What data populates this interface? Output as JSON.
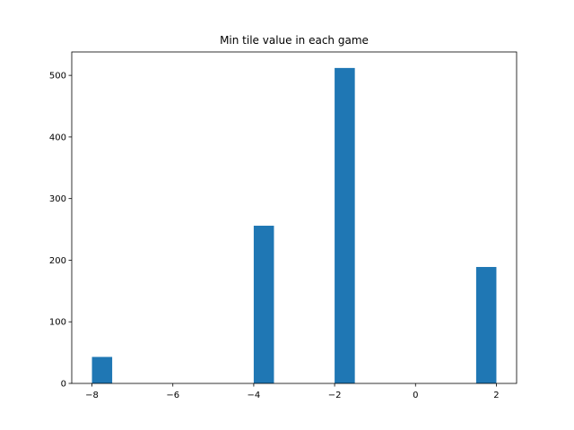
{
  "chart_data": {
    "type": "bar",
    "title": "Min tile value in each game",
    "xlabel": "",
    "ylabel": "",
    "xlim": [
      -8.5,
      2.5
    ],
    "ylim": [
      0,
      538
    ],
    "grid": false,
    "bar_color": "#1f77b4",
    "bin_width": 0.5,
    "bars": [
      {
        "x_left": -8.0,
        "x_right": -7.5,
        "value": 43
      },
      {
        "x_left": -4.0,
        "x_right": -3.5,
        "value": 256
      },
      {
        "x_left": -2.0,
        "x_right": -1.5,
        "value": 512
      },
      {
        "x_left": 1.5,
        "x_right": 2.0,
        "value": 189
      }
    ],
    "x_ticks": [
      {
        "value": -8,
        "label": "−8"
      },
      {
        "value": -6,
        "label": "−6"
      },
      {
        "value": -4,
        "label": "−4"
      },
      {
        "value": -2,
        "label": "−2"
      },
      {
        "value": 0,
        "label": "0"
      },
      {
        "value": 2,
        "label": "2"
      }
    ],
    "y_ticks": [
      {
        "value": 0,
        "label": "0"
      },
      {
        "value": 100,
        "label": "100"
      },
      {
        "value": 200,
        "label": "200"
      },
      {
        "value": 300,
        "label": "300"
      },
      {
        "value": 400,
        "label": "400"
      },
      {
        "value": 500,
        "label": "500"
      }
    ]
  }
}
